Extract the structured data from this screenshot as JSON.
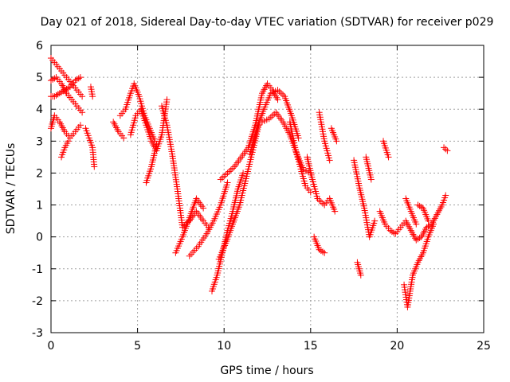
{
  "chart_data": {
    "type": "scatter",
    "title": "Day 021 of 2018, Sidereal Day-to-day VTEC variation (SDTVAR) for receiver p029",
    "xlabel": "GPS time / hours",
    "ylabel": "SDTVAR / TECUs",
    "xlim": [
      0,
      25
    ],
    "ylim": [
      -3,
      6
    ],
    "xticks": [
      0,
      5,
      10,
      15,
      20,
      25
    ],
    "yticks": [
      -3,
      -2,
      -1,
      0,
      1,
      2,
      3,
      4,
      5,
      6
    ],
    "grid": true,
    "marker": "+",
    "color": "#ff0000",
    "series": [
      {
        "name": "SDTVAR",
        "segments": [
          {
            "x": [
              0.0,
              0.3,
              0.6,
              0.9,
              1.2,
              1.5,
              1.8
            ],
            "y": [
              5.6,
              5.4,
              5.2,
              5.0,
              4.8,
              4.6,
              4.4
            ]
          },
          {
            "x": [
              0.0,
              0.3,
              0.6,
              0.9,
              1.2,
              1.5,
              1.8
            ],
            "y": [
              4.9,
              5.0,
              4.8,
              4.5,
              4.3,
              4.1,
              3.9
            ]
          },
          {
            "x": [
              0.0,
              0.2,
              0.5,
              0.8,
              1.1,
              1.4,
              1.7
            ],
            "y": [
              4.4,
              4.4,
              4.5,
              4.6,
              4.7,
              4.9,
              5.0
            ]
          },
          {
            "x": [
              0.0,
              0.2,
              0.5,
              0.8,
              1.1,
              1.4,
              1.7
            ],
            "y": [
              3.4,
              3.8,
              3.6,
              3.3,
              3.1,
              3.3,
              3.5
            ]
          },
          {
            "x": [
              0.6,
              0.8,
              1.0
            ],
            "y": [
              2.5,
              2.8,
              3.0
            ]
          },
          {
            "x": [
              2.0,
              2.2,
              2.4,
              2.5
            ],
            "y": [
              3.4,
              3.1,
              2.8,
              2.2
            ]
          },
          {
            "x": [
              2.3,
              2.4
            ],
            "y": [
              4.7,
              4.4
            ]
          },
          {
            "x": [
              3.6,
              3.9,
              4.2
            ],
            "y": [
              3.6,
              3.3,
              3.1
            ]
          },
          {
            "x": [
              4.0,
              4.3,
              4.6,
              4.8,
              5.1,
              5.4,
              5.7,
              6.0
            ],
            "y": [
              3.8,
              4.0,
              4.5,
              4.8,
              4.4,
              3.8,
              3.4,
              3.0
            ]
          },
          {
            "x": [
              4.6,
              4.9,
              5.2,
              5.5,
              5.8,
              6.1,
              6.4,
              6.7
            ],
            "y": [
              3.2,
              3.8,
              4.0,
              3.5,
              3.0,
              2.7,
              3.2,
              4.3
            ]
          },
          {
            "x": [
              5.5,
              5.8,
              6.1
            ],
            "y": [
              1.7,
              2.2,
              2.9
            ]
          },
          {
            "x": [
              6.4,
              6.7,
              7.0,
              7.3,
              7.6,
              8.0,
              8.4,
              8.8,
              9.1
            ],
            "y": [
              4.1,
              3.5,
              2.6,
              1.5,
              0.3,
              0.5,
              0.8,
              0.5,
              0.3
            ]
          },
          {
            "x": [
              7.2,
              7.6,
              8.0,
              8.4,
              8.8
            ],
            "y": [
              -0.5,
              0.0,
              0.6,
              1.2,
              0.9
            ]
          },
          {
            "x": [
              8.0,
              8.5,
              9.0,
              9.4,
              9.8,
              10.2
            ],
            "y": [
              -0.6,
              -0.3,
              0.1,
              0.5,
              1.0,
              1.7
            ]
          },
          {
            "x": [
              9.3,
              9.6,
              9.9,
              10.2,
              10.5,
              10.8,
              11.1
            ],
            "y": [
              -1.7,
              -1.2,
              -0.5,
              0.2,
              0.8,
              1.5,
              2.0
            ]
          },
          {
            "x": [
              9.7,
              10.1,
              10.5,
              10.9,
              11.3,
              11.7,
              12.0
            ],
            "y": [
              -0.7,
              -0.2,
              0.4,
              1.0,
              1.9,
              2.8,
              3.5
            ]
          },
          {
            "x": [
              9.8,
              10.2,
              10.6,
              11.0,
              11.4,
              11.8,
              12.2,
              12.5,
              12.8,
              13.1
            ],
            "y": [
              1.8,
              2.0,
              2.2,
              2.5,
              2.8,
              3.5,
              4.5,
              4.8,
              4.6,
              4.3
            ]
          },
          {
            "x": [
              11.5,
              11.9,
              12.3,
              12.7,
              13.1,
              13.5,
              13.9,
              14.3
            ],
            "y": [
              2.6,
              3.4,
              4.0,
              4.5,
              4.6,
              4.4,
              3.8,
              3.1
            ]
          },
          {
            "x": [
              12.2,
              12.6,
              13.0,
              13.4,
              13.8,
              14.2,
              14.6,
              15.0
            ],
            "y": [
              3.6,
              3.7,
              3.9,
              3.6,
              3.2,
              2.6,
              2.1,
              2.0
            ]
          },
          {
            "x": [
              13.8,
              14.1,
              14.4,
              14.7,
              15.0
            ],
            "y": [
              3.6,
              2.8,
              2.2,
              1.6,
              1.4
            ]
          },
          {
            "x": [
              14.8,
              15.1,
              15.4,
              15.8,
              16.1,
              16.4
            ],
            "y": [
              2.5,
              1.8,
              1.2,
              1.0,
              1.2,
              0.8
            ]
          },
          {
            "x": [
              15.2,
              15.5,
              15.8
            ],
            "y": [
              0.0,
              -0.4,
              -0.5
            ]
          },
          {
            "x": [
              15.5,
              15.8,
              16.1
            ],
            "y": [
              3.9,
              3.0,
              2.4
            ]
          },
          {
            "x": [
              16.2,
              16.5
            ],
            "y": [
              3.4,
              3.0
            ]
          },
          {
            "x": [
              17.5,
              17.8,
              18.1,
              18.4,
              18.7
            ],
            "y": [
              2.4,
              1.6,
              0.9,
              0.0,
              0.5
            ]
          },
          {
            "x": [
              17.7,
              17.9
            ],
            "y": [
              -0.8,
              -1.2
            ]
          },
          {
            "x": [
              18.2,
              18.5
            ],
            "y": [
              2.5,
              1.8
            ]
          },
          {
            "x": [
              19.0,
              19.3,
              19.6,
              19.9,
              20.2,
              20.5,
              20.8,
              21.1,
              21.4,
              21.7,
              22.0,
              22.3,
              22.6,
              22.8
            ],
            "y": [
              0.8,
              0.4,
              0.2,
              0.1,
              0.3,
              0.5,
              0.2,
              -0.1,
              0.0,
              0.3,
              0.4,
              0.7,
              1.0,
              1.3
            ]
          },
          {
            "x": [
              19.2,
              19.5
            ],
            "y": [
              3.0,
              2.5
            ]
          },
          {
            "x": [
              20.4,
              20.6,
              20.9,
              21.2,
              21.5,
              21.8,
              22.1
            ],
            "y": [
              -1.5,
              -2.2,
              -1.2,
              -0.8,
              -0.5,
              0.0,
              0.4
            ]
          },
          {
            "x": [
              20.5,
              20.8,
              21.1
            ],
            "y": [
              1.2,
              0.8,
              0.4
            ]
          },
          {
            "x": [
              21.2,
              21.5,
              21.8
            ],
            "y": [
              1.0,
              0.9,
              0.5
            ]
          },
          {
            "x": [
              22.7,
              22.9
            ],
            "y": [
              2.8,
              2.7
            ]
          }
        ]
      }
    ]
  }
}
